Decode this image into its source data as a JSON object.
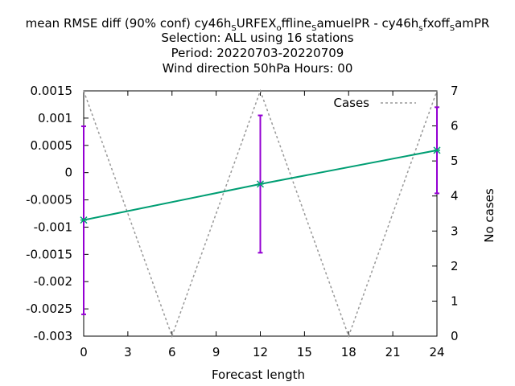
{
  "chart_data": {
    "type": "line",
    "title_lines": [
      "mean RMSE diff (90% conf) cy46h_SURFEX_offline_SamuelPR - cy46h_sfxoff_SamPR",
      "Selection: ALL using    16 stations",
      "Period: 20220703-20220709",
      "Wind direction 50hPa   Hours:  00"
    ],
    "title_line1_parts": [
      {
        "t": "mean RMSE diff (90% conf) cy46h",
        "sub": false
      },
      {
        "t": "S",
        "sub": true
      },
      {
        "t": "URFEX",
        "sub": false
      },
      {
        "t": "o",
        "sub": true
      },
      {
        "t": "ffline",
        "sub": false
      },
      {
        "t": "S",
        "sub": true
      },
      {
        "t": "amuelPR - cy46h",
        "sub": false
      },
      {
        "t": "s",
        "sub": true
      },
      {
        "t": "fxoff",
        "sub": false
      },
      {
        "t": "S",
        "sub": true
      },
      {
        "t": "amPR",
        "sub": false
      }
    ],
    "xlabel": "Forecast length",
    "ylabel": "",
    "y2label": "No cases",
    "xlim": [
      0,
      24
    ],
    "ylim": [
      -0.003,
      0.0015
    ],
    "y2lim": [
      0,
      7
    ],
    "xticks": [
      0,
      3,
      6,
      9,
      12,
      15,
      18,
      21,
      24
    ],
    "yticks": [
      "0.0015",
      "0.001",
      "0.0005",
      "0",
      "-0.0005",
      "-0.001",
      "-0.0015",
      "-0.002",
      "-0.0025",
      "-0.003"
    ],
    "y2ticks": [
      0,
      1,
      2,
      3,
      4,
      5,
      6,
      7
    ],
    "grid": false,
    "legend_position": "top-right",
    "series": [
      {
        "name": "",
        "color": "#009e73",
        "axis": "y",
        "x": [
          0,
          12,
          24
        ],
        "values": [
          -0.00087,
          -0.00021,
          0.00041
        ],
        "err_low": [
          -0.0026,
          -0.00147,
          -0.00038
        ],
        "err_high": [
          0.00085,
          0.00105,
          0.0012
        ],
        "err_color": "#9400d3"
      },
      {
        "name": "Cases",
        "color": "#999999",
        "axis": "y2",
        "x": [
          0,
          6,
          12,
          18,
          24
        ],
        "values": [
          7,
          0,
          7,
          0,
          7
        ]
      }
    ]
  }
}
